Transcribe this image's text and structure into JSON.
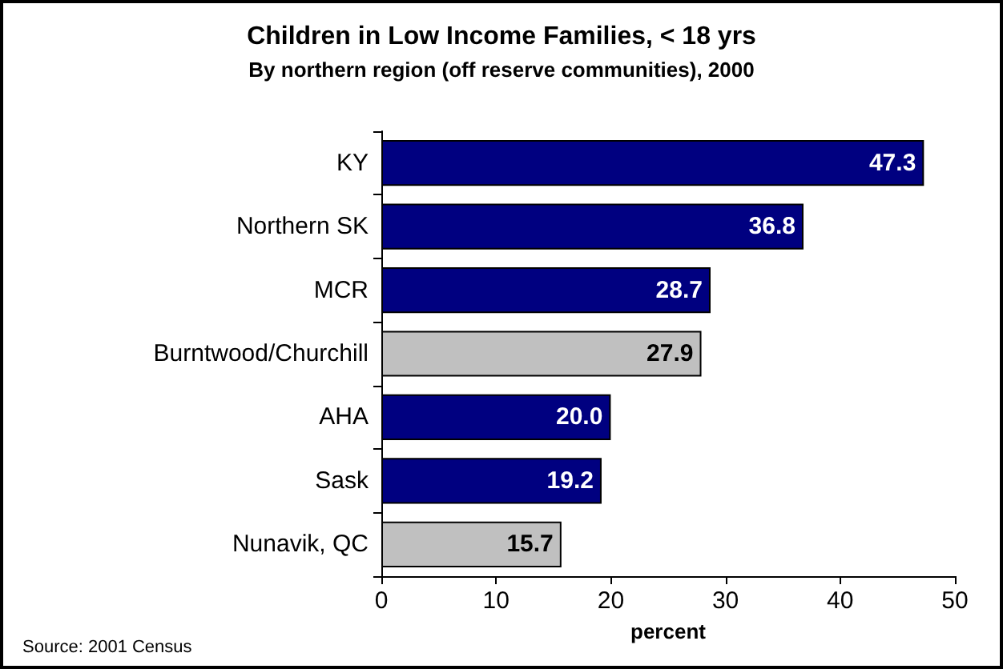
{
  "chart_data": {
    "type": "bar",
    "orientation": "horizontal",
    "title": "Children in Low Income Families, < 18 yrs",
    "subtitle": "By northern region (off reserve communities), 2000",
    "xlabel": "percent",
    "categories": [
      "KY",
      "Northern SK",
      "MCR",
      "Burntwood/Churchill",
      "AHA",
      "Sask",
      "Nunavik, QC"
    ],
    "values": [
      47.3,
      36.8,
      28.7,
      27.9,
      20.0,
      19.2,
      15.7
    ],
    "value_labels": [
      "47.3",
      "36.8",
      "28.7",
      "27.9",
      "20.0",
      "19.2",
      "15.7"
    ],
    "colors": [
      "#000080",
      "#000080",
      "#000080",
      "#c0c0c0",
      "#000080",
      "#000080",
      "#c0c0c0"
    ],
    "xlim": [
      0,
      50
    ],
    "xticks": [
      0,
      10,
      20,
      30,
      40,
      50
    ],
    "grid": false,
    "annotations": [
      "Source: 2001 Census"
    ]
  }
}
